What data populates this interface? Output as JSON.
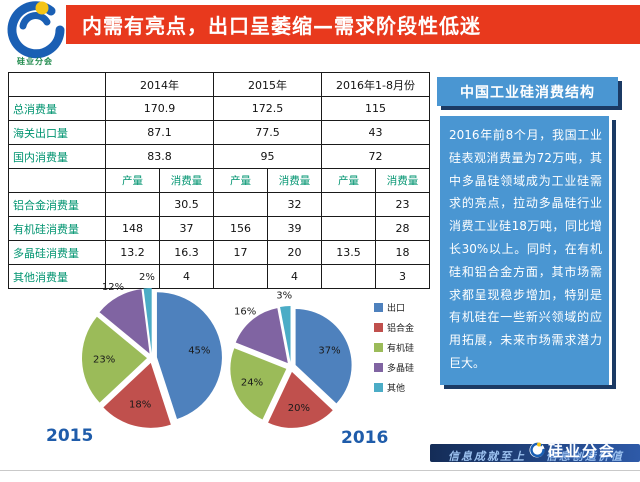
{
  "slide": {
    "title": "内需有亮点，出口呈萎缩—需求阶段性低迷"
  },
  "logo": {
    "caption": "硅业分会"
  },
  "table": {
    "year_headers": [
      "2014年",
      "2015年",
      "2016年1-8月份"
    ],
    "sub_headers": [
      "产量",
      "消费量"
    ],
    "merged_rows": [
      {
        "label": "总消费量",
        "values": [
          "170.9",
          "172.5",
          "115"
        ]
      },
      {
        "label": "海关出口量",
        "values": [
          "87.1",
          "77.5",
          "43"
        ]
      },
      {
        "label": "国内消费量",
        "values": [
          "83.8",
          "95",
          "72"
        ]
      }
    ],
    "detail_rows": [
      {
        "label": "铝合金消费量",
        "values": [
          "",
          "30.5",
          "",
          "32",
          "",
          "23"
        ]
      },
      {
        "label": "有机硅消费量",
        "values": [
          "148",
          "37",
          "156",
          "39",
          "",
          "28"
        ]
      },
      {
        "label": "多晶硅消费量",
        "values": [
          "13.2",
          "16.3",
          "17",
          "20",
          "13.5",
          "18"
        ]
      },
      {
        "label": "其他消费量",
        "values": [
          "",
          "4",
          "",
          "4",
          "",
          "3"
        ]
      }
    ]
  },
  "chart_data": [
    {
      "type": "pie",
      "title": "2015",
      "unit": "%",
      "labels": [
        "出口",
        "铝合金",
        "有机硅",
        "多晶硅",
        "其他"
      ],
      "values": [
        45,
        18,
        23,
        12,
        2
      ],
      "colors": [
        "#4e81bd",
        "#c0504d",
        "#9bbb59",
        "#8064a2",
        "#4bacc6"
      ],
      "legend_position": "right",
      "exploded": true
    },
    {
      "type": "pie",
      "title": "2016",
      "unit": "%",
      "labels": [
        "出口",
        "铝合金",
        "有机硅",
        "多晶硅",
        "其他"
      ],
      "values": [
        37,
        20,
        24,
        16,
        3
      ],
      "colors": [
        "#4e81bd",
        "#c0504d",
        "#9bbb59",
        "#8064a2",
        "#4bacc6"
      ],
      "legend_position": "right",
      "exploded": true
    }
  ],
  "legend": {
    "items": [
      {
        "label": "出口",
        "color": "#4e81bd"
      },
      {
        "label": "铝合金",
        "color": "#c0504d"
      },
      {
        "label": "有机硅",
        "color": "#9bbb59"
      },
      {
        "label": "多晶硅",
        "color": "#8064a2"
      },
      {
        "label": "其他",
        "color": "#4bacc6"
      }
    ]
  },
  "right_panel": {
    "title": "中国工业硅消费结构",
    "body": "2016年前8个月，我国工业硅表观消费量为72万吨，其中多晶硅领域成为工业硅需求的亮点，拉动多晶硅行业消费工业硅18万吨，同比增长30%以上。同时，在有机硅和铝合金方面，其市场需求都呈现稳步增加，特别是有机硅在一些新兴领域的应用拓展，未来市场需求潜力巨大。"
  },
  "footer": {
    "watermark_left": "信息成就至上",
    "watermark_right": "信息创造价值",
    "brand": "硅业分会"
  },
  "colors": {
    "banner_red": "#e8391d",
    "panel_blue": "#4a96d2",
    "shadow_navy": "#1b3a64",
    "caption_blue": "#1f5caa",
    "table_label_green": "#009470",
    "footer_navy": "#142c57",
    "watermark_blue": "#9cc2f0"
  }
}
